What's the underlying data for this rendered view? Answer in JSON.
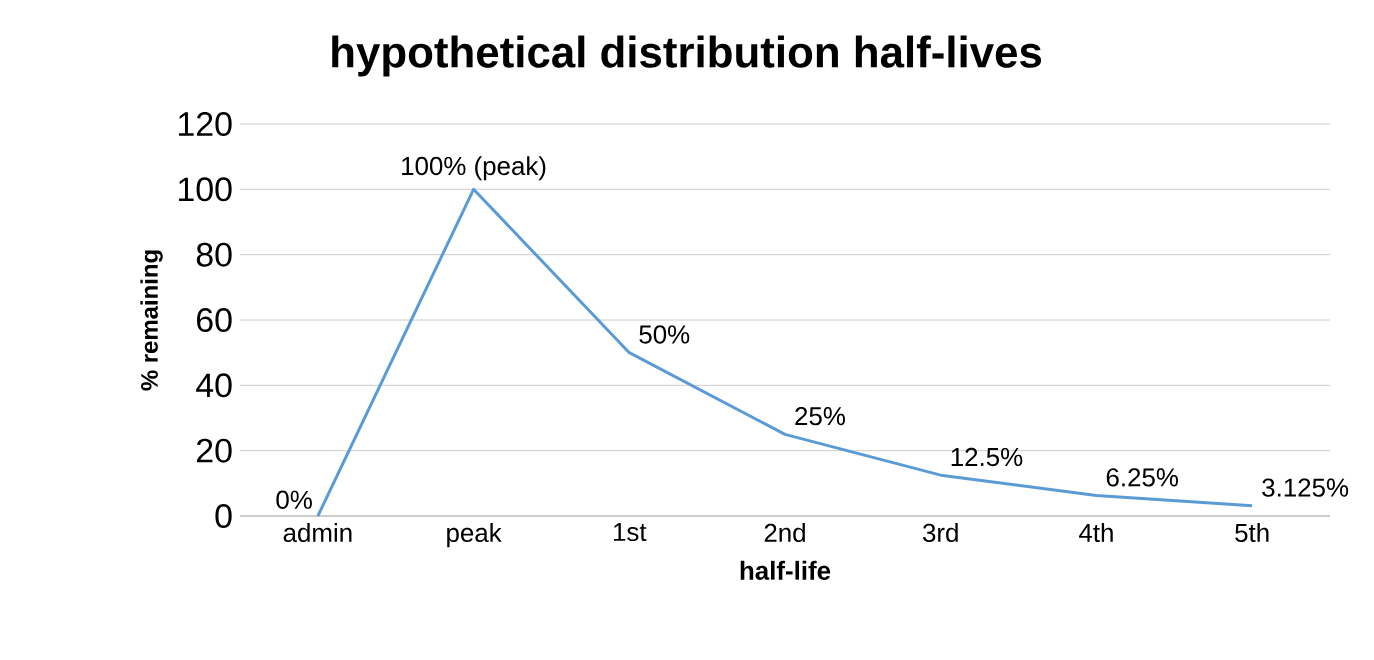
{
  "chart_data": {
    "type": "line",
    "title": "hypothetical distribution half-lives",
    "xlabel": "half-life",
    "ylabel": "% remaining",
    "categories": [
      "admin",
      "peak",
      "1st",
      "2nd",
      "3rd",
      "4th",
      "5th"
    ],
    "values": [
      0,
      100,
      50,
      25,
      12.5,
      6.25,
      3.125
    ],
    "value_labels": [
      "0%",
      "100% (peak)",
      "50%",
      "25%",
      "12.5%",
      "6.25%",
      "3.125%"
    ],
    "color": "#5b9bd5",
    "ylim": [
      0,
      120
    ],
    "yticks": [
      0,
      20,
      40,
      60,
      80,
      100,
      120
    ],
    "grid": "y",
    "marker": "none",
    "line_style": "solid"
  }
}
